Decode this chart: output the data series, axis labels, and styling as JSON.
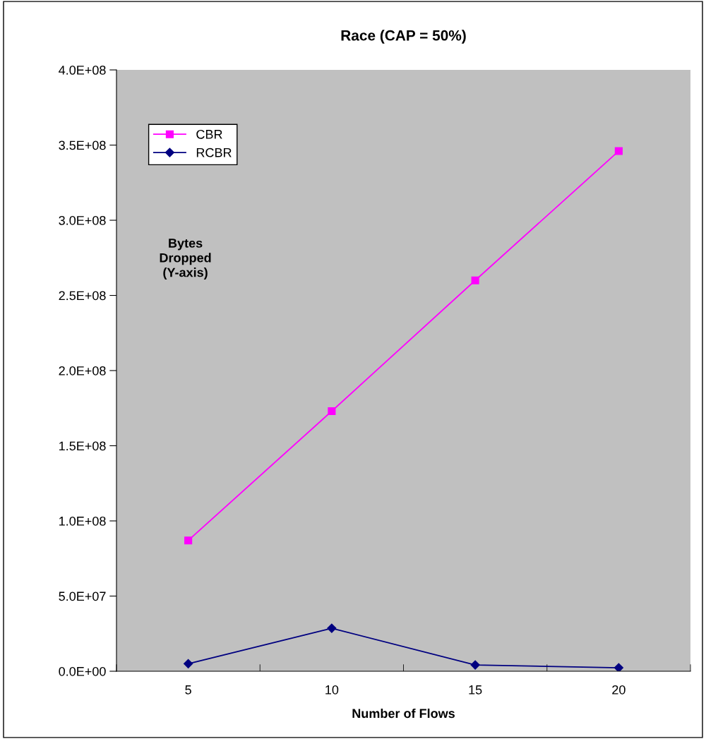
{
  "chart_data": {
    "type": "line",
    "title": "Race (CAP = 50%)",
    "xlabel": "Number of Flows",
    "ylabel": "Bytes Dropped (Y-axis)",
    "categories": [
      "5",
      "10",
      "15",
      "20"
    ],
    "series": [
      {
        "name": "CBR",
        "color": "#ff00ff",
        "marker": "square",
        "values": [
          87000000,
          173000000,
          260000000,
          346000000
        ]
      },
      {
        "name": "RCBR",
        "color": "#000080",
        "marker": "diamond",
        "values": [
          5000000,
          28600000,
          4200000,
          2300000
        ]
      }
    ],
    "ylim": [
      0,
      400000000
    ],
    "yticks": [
      {
        "value": 0,
        "label": "0.0E+00"
      },
      {
        "value": 50000000,
        "label": "5.0E+07"
      },
      {
        "value": 100000000,
        "label": "1.0E+08"
      },
      {
        "value": 150000000,
        "label": "1.5E+08"
      },
      {
        "value": 200000000,
        "label": "2.0E+08"
      },
      {
        "value": 250000000,
        "label": "2.5E+08"
      },
      {
        "value": 300000000,
        "label": "3.0E+08"
      },
      {
        "value": 350000000,
        "label": "3.5E+08"
      },
      {
        "value": 400000000,
        "label": "4.0E+08"
      }
    ],
    "grid": false,
    "legend": "top left",
    "line_style": "solid"
  }
}
